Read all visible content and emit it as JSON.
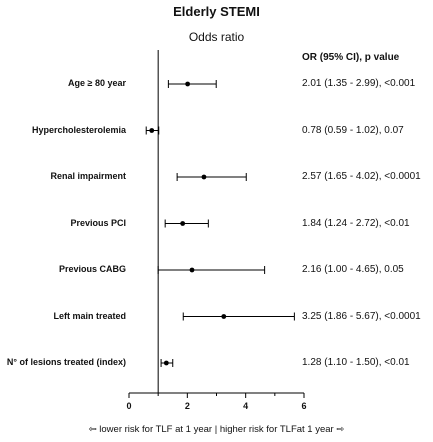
{
  "chart_data": {
    "type": "forest",
    "title": "Elderly STEMI",
    "subtitle": "Odds ratio",
    "value_header": "OR (95% CI), p value",
    "xlim": [
      0,
      6
    ],
    "x_ticks": [
      "0",
      "2",
      "4",
      "6"
    ],
    "reference_line": 1,
    "footer": "⇦ lower risk for TLF at 1 year | higher risk for TLFat 1 year ⇨",
    "rows": [
      {
        "label": "Age ≥ 80 year",
        "or": 2.01,
        "lo": 1.35,
        "hi": 2.99,
        "text": "2.01 (1.35 - 2.99), <0.001"
      },
      {
        "label": "Hypercholesterolemia",
        "or": 0.78,
        "lo": 0.59,
        "hi": 1.02,
        "text": "0.78 (0.59 - 1.02), 0.07"
      },
      {
        "label": "Renal impairment",
        "or": 2.57,
        "lo": 1.65,
        "hi": 4.02,
        "text": "2.57 (1.65 - 4.02), <0.0001"
      },
      {
        "label": "Previous PCI",
        "or": 1.84,
        "lo": 1.24,
        "hi": 2.72,
        "text": "1.84 (1.24 - 2.72), <0.01"
      },
      {
        "label": "Previous CABG",
        "or": 2.16,
        "lo": 1.0,
        "hi": 4.65,
        "text": "2.16 (1.00 - 4.65), 0.05"
      },
      {
        "label": "Left main treated",
        "or": 3.25,
        "lo": 1.86,
        "hi": 5.67,
        "text": "3.25 (1.86 - 5.67), <0.0001"
      },
      {
        "label": "N° of lesions treated (index)",
        "or": 1.28,
        "lo": 1.1,
        "hi": 1.5,
        "text": "1.28 (1.10 - 1.50), <0.01"
      }
    ]
  }
}
